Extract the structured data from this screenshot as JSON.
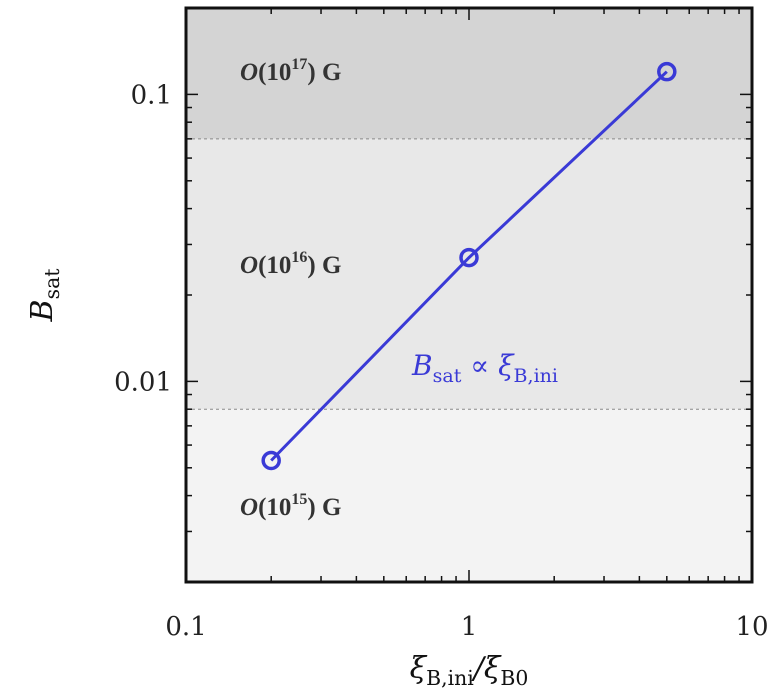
{
  "chart_data": {
    "type": "line",
    "title": "",
    "xlabel": "ξ_B,ini/ξ_B0",
    "ylabel": "B_sat",
    "xscale": "log",
    "yscale": "log",
    "xlim": [
      0.1,
      10
    ],
    "ylim": [
      0.002,
      0.2
    ],
    "x_ticks": [
      {
        "value": 0.1,
        "label": "0.1"
      },
      {
        "value": 1,
        "label": "1"
      },
      {
        "value": 10,
        "label": "10"
      }
    ],
    "y_ticks": [
      {
        "value": 0.01,
        "label": "0.01"
      },
      {
        "value": 0.1,
        "label": "0.1"
      }
    ],
    "grid": false,
    "series": [
      {
        "x": [
          0.2,
          1,
          5
        ],
        "y": [
          0.0053,
          0.027,
          0.12
        ],
        "color": "#3a3ad6",
        "marker": "open-circle"
      }
    ],
    "bands": [
      {
        "y_from": 0.07,
        "y_to": 0.2,
        "color": "#d4d4d4",
        "label": "O(10^17) G"
      },
      {
        "y_from": 0.008,
        "y_to": 0.07,
        "color": "#e8e8e8",
        "label": "O(10^16) G"
      },
      {
        "y_from": 0.002,
        "y_to": 0.008,
        "color": "#f3f3f3",
        "label": "O(10^15) G"
      }
    ],
    "annotation": {
      "text": "B_sat ∝ ξ_B,ini",
      "color": "#3a3ad6"
    }
  }
}
